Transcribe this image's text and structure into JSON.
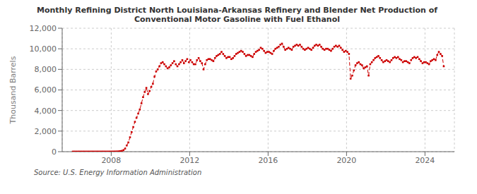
{
  "chart_data": {
    "type": "line",
    "title": "Monthly Refining District North Louisiana-Arkansas Refinery and Blender Net Production of\nConventional Motor Gasoline with Fuel Ethanol",
    "ylabel": "Thousand Barrels",
    "annotations": [
      "Source: U.S. Energy Information Administration"
    ],
    "color": "#cc0000",
    "line_style": "dashed",
    "marker": "square",
    "grid": true,
    "xlim": [
      2005.5,
      2025.5
    ],
    "xticks": [
      2008,
      2012,
      2016,
      2020,
      2024
    ],
    "ylim": [
      0,
      12000
    ],
    "yticks": [
      0,
      {
        "value": 2000,
        "label": "2,000"
      },
      {
        "value": 4000,
        "label": "4,000"
      },
      {
        "value": 6000,
        "label": "6,000"
      },
      {
        "value": 8000,
        "label": "8,000"
      },
      {
        "value": 10000,
        "label": "10,000"
      },
      {
        "value": 12000,
        "label": "12,000"
      }
    ],
    "x": [
      2006.0416666666667,
      2006.125,
      2006.2083333333333,
      2006.2916666666667,
      2006.375,
      2006.4583333333333,
      2006.5416666666667,
      2006.625,
      2006.7083333333333,
      2006.7916666666667,
      2006.875,
      2006.9583333333333,
      2007.0416666666667,
      2007.125,
      2007.2083333333333,
      2007.2916666666667,
      2007.375,
      2007.4583333333333,
      2007.5416666666667,
      2007.625,
      2007.7083333333333,
      2007.7916666666667,
      2007.875,
      2007.9583333333333,
      2008.0416666666667,
      2008.125,
      2008.2083333333333,
      2008.2916666666667,
      2008.375,
      2008.4583333333333,
      2008.5416666666667,
      2008.625,
      2008.7083333333333,
      2008.7916666666667,
      2008.875,
      2008.9583333333333,
      2009.0416666666667,
      2009.125,
      2009.2083333333333,
      2009.2916666666667,
      2009.375,
      2009.4583333333333,
      2009.5416666666667,
      2009.625,
      2009.7083333333333,
      2009.7916666666667,
      2009.875,
      2009.9583333333333,
      2010.0416666666667,
      2010.125,
      2010.2083333333333,
      2010.2916666666667,
      2010.375,
      2010.4583333333333,
      2010.5416666666667,
      2010.625,
      2010.7083333333333,
      2010.7916666666667,
      2010.875,
      2010.9583333333333,
      2011.0416666666667,
      2011.125,
      2011.2083333333333,
      2011.2916666666667,
      2011.375,
      2011.4583333333333,
      2011.5416666666667,
      2011.625,
      2011.7083333333333,
      2011.7916666666667,
      2011.875,
      2011.9583333333333,
      2012.0416666666667,
      2012.125,
      2012.2083333333333,
      2012.2916666666667,
      2012.375,
      2012.4583333333333,
      2012.5416666666667,
      2012.625,
      2012.7083333333333,
      2012.7916666666667,
      2012.875,
      2012.9583333333333,
      2013.0416666666667,
      2013.125,
      2013.2083333333333,
      2013.2916666666667,
      2013.375,
      2013.4583333333333,
      2013.5416666666667,
      2013.625,
      2013.7083333333333,
      2013.7916666666667,
      2013.875,
      2013.9583333333333,
      2014.0416666666667,
      2014.125,
      2014.2083333333333,
      2014.2916666666667,
      2014.375,
      2014.4583333333333,
      2014.5416666666667,
      2014.625,
      2014.7083333333333,
      2014.7916666666667,
      2014.875,
      2014.9583333333333,
      2015.0416666666667,
      2015.125,
      2015.2083333333333,
      2015.2916666666667,
      2015.375,
      2015.4583333333333,
      2015.5416666666667,
      2015.625,
      2015.7083333333333,
      2015.7916666666667,
      2015.875,
      2015.9583333333333,
      2016.0416666666667,
      2016.125,
      2016.2083333333333,
      2016.2916666666667,
      2016.375,
      2016.4583333333333,
      2016.5416666666667,
      2016.625,
      2016.7083333333333,
      2016.7916666666667,
      2016.875,
      2016.9583333333333,
      2017.0416666666667,
      2017.125,
      2017.2083333333333,
      2017.2916666666667,
      2017.375,
      2017.4583333333333,
      2017.5416666666667,
      2017.625,
      2017.7083333333333,
      2017.7916666666667,
      2017.875,
      2017.9583333333333,
      2018.0416666666667,
      2018.125,
      2018.2083333333333,
      2018.2916666666667,
      2018.375,
      2018.4583333333333,
      2018.5416666666667,
      2018.625,
      2018.7083333333333,
      2018.7916666666667,
      2018.875,
      2018.9583333333333,
      2019.0416666666667,
      2019.125,
      2019.2083333333333,
      2019.2916666666667,
      2019.375,
      2019.4583333333333,
      2019.5416666666667,
      2019.625,
      2019.7083333333333,
      2019.7916666666667,
      2019.875,
      2019.9583333333333,
      2020.0416666666667,
      2020.125,
      2020.2083333333333,
      2020.2916666666667,
      2020.375,
      2020.4583333333333,
      2020.5416666666667,
      2020.625,
      2020.7083333333333,
      2020.7916666666667,
      2020.875,
      2020.9583333333333,
      2021.0416666666667,
      2021.125,
      2021.2083333333333,
      2021.2916666666667,
      2021.375,
      2021.4583333333333,
      2021.5416666666667,
      2021.625,
      2021.7083333333333,
      2021.7916666666667,
      2021.875,
      2021.9583333333333,
      2022.0416666666667,
      2022.125,
      2022.2083333333333,
      2022.2916666666667,
      2022.375,
      2022.4583333333333,
      2022.5416666666667,
      2022.625,
      2022.7083333333333,
      2022.7916666666667,
      2022.875,
      2022.9583333333333,
      2023.0416666666667,
      2023.125,
      2023.2083333333333,
      2023.2916666666667,
      2023.375,
      2023.4583333333333,
      2023.5416666666667,
      2023.625,
      2023.7083333333333,
      2023.7916666666667,
      2023.875,
      2023.9583333333333,
      2024.0416666666667,
      2024.125,
      2024.2083333333333,
      2024.2916666666667,
      2024.375,
      2024.4583333333333,
      2024.5416666666667,
      2024.625,
      2024.7083333333333,
      2024.7916666666667,
      2024.875,
      2024.9583333333333
    ],
    "values": [
      5,
      6,
      5,
      6,
      7,
      6,
      6,
      7,
      5,
      6,
      6,
      7,
      8,
      7,
      7,
      8,
      8,
      7,
      8,
      8,
      7,
      7,
      8,
      9,
      10,
      12,
      15,
      20,
      30,
      50,
      80,
      150,
      300,
      600,
      900,
      1400,
      1900,
      2400,
      2900,
      3300,
      3700,
      4100,
      4700,
      5300,
      5800,
      6200,
      5600,
      5900,
      6300,
      6600,
      7300,
      7800,
      8000,
      8300,
      8600,
      8700,
      8500,
      8300,
      8100,
      8200,
      8400,
      8600,
      8800,
      8500,
      8300,
      8500,
      8700,
      8900,
      8600,
      8800,
      9000,
      8700,
      8900,
      8700,
      8500,
      8500,
      8900,
      9100,
      8800,
      8600,
      8000,
      8500,
      8900,
      9000,
      9000,
      8900,
      8800,
      9100,
      9300,
      9400,
      9500,
      9700,
      9500,
      9300,
      9100,
      9200,
      9200,
      9000,
      9100,
      9300,
      9500,
      9600,
      9700,
      9800,
      9700,
      9500,
      9300,
      9400,
      9400,
      9300,
      9200,
      9500,
      9700,
      9800,
      9900,
      10100,
      10000,
      9800,
      9600,
      9700,
      9700,
      9600,
      9500,
      9800,
      10000,
      10100,
      10200,
      10400,
      10500,
      10200,
      9900,
      10000,
      10100,
      10000,
      9900,
      10200,
      10300,
      10400,
      10300,
      10400,
      10200,
      10000,
      9900,
      10000,
      10100,
      10000,
      9900,
      10100,
      10300,
      10400,
      10300,
      10400,
      10200,
      10000,
      9900,
      10000,
      10000,
      9900,
      9800,
      10000,
      10200,
      10300,
      10200,
      10300,
      10100,
      9900,
      9700,
      9800,
      9700,
      9500,
      7100,
      7400,
      7900,
      8400,
      8600,
      8700,
      8500,
      8400,
      8100,
      8200,
      8300,
      7400,
      8500,
      8700,
      8900,
      9100,
      9200,
      9300,
      9100,
      8900,
      8700,
      8800,
      8900,
      8800,
      8700,
      8900,
      9100,
      9200,
      9100,
      9200,
      9000,
      8900,
      8700,
      8800,
      8800,
      8700,
      8600,
      8900,
      9100,
      9200,
      9100,
      9200,
      9000,
      8800,
      8600,
      8700,
      8700,
      8600,
      8500,
      8800,
      8900,
      9000,
      8900,
      9400,
      9700,
      9500,
      9300,
      8300
    ]
  }
}
